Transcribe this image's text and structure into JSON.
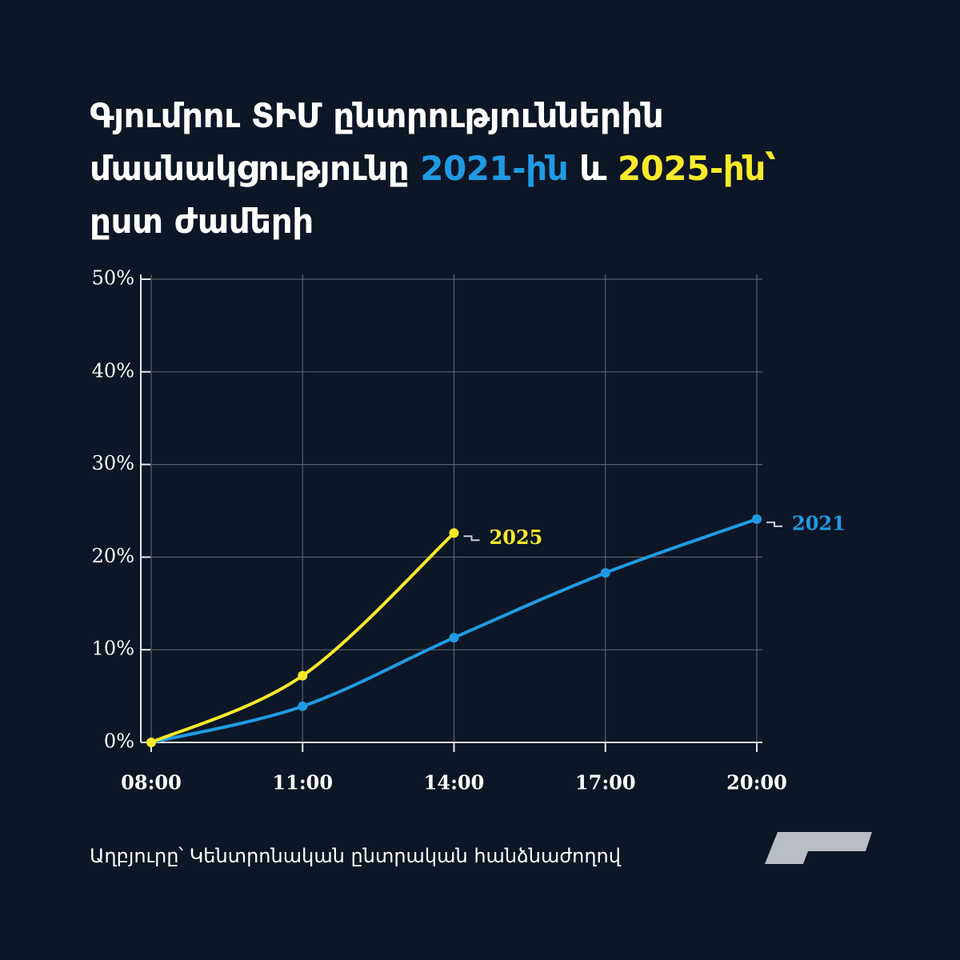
{
  "chart_data": {
    "type": "line",
    "title_parts": [
      "Գյումրու ՏԻՄ ընտրություններին մասնակցությունը ",
      "2021-ին",
      " և ",
      "2025-ին՝",
      " ըստ ժամերի"
    ],
    "categories": [
      "08:00",
      "11:00",
      "14:00",
      "17:00",
      "20:00"
    ],
    "series": [
      {
        "name": "2021",
        "color": "#1f9be3",
        "values": [
          0,
          3.9,
          11.3,
          18.3,
          24.1
        ]
      },
      {
        "name": "2025",
        "color": "#f7ea2a",
        "values": [
          0,
          7.2,
          22.6,
          null,
          null
        ]
      }
    ],
    "ylim": [
      0,
      50
    ],
    "yticks": [
      {
        "value": 0,
        "label": "0%"
      },
      {
        "value": 10,
        "label": "10%"
      },
      {
        "value": 20,
        "label": "20%"
      },
      {
        "value": 30,
        "label": "30%"
      },
      {
        "value": 40,
        "label": "40%"
      },
      {
        "value": 50,
        "label": "50%"
      }
    ],
    "grid": true,
    "source": "Աղբյուրը՝ Կենտրոնական ընտրական հանձնաժողով",
    "logo": "INFOCOM"
  }
}
